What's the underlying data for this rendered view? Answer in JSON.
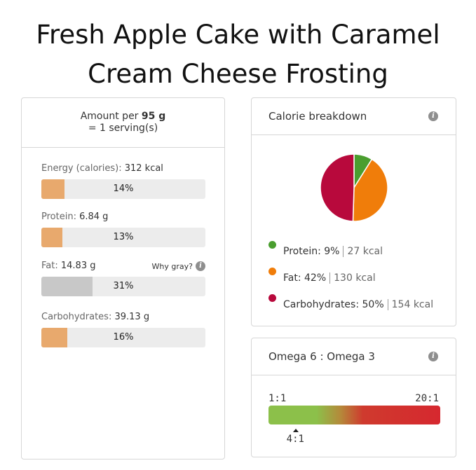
{
  "title_line1": "Fresh Apple Cake with Caramel",
  "title_line2": "Cream Cheese Frosting",
  "serving": {
    "amount_prefix": "Amount per ",
    "amount_value": "95 g",
    "servings": "= 1 serving(s)"
  },
  "nutrients": [
    {
      "label": "Energy (calories):",
      "value": "312 kcal",
      "percent": "14%",
      "fill": 0.14
    },
    {
      "label": "Protein:",
      "value": "6.84 g",
      "percent": "13%",
      "fill": 0.13
    },
    {
      "label": "Fat:",
      "value": "14.83 g",
      "percent": "31%",
      "fill": 0.31,
      "note": "Why gray?"
    },
    {
      "label": "Carbohydrates:",
      "value": "39.13 g",
      "percent": "16%",
      "fill": 0.16
    }
  ],
  "calorie_breakdown": {
    "title": "Calorie breakdown",
    "info_icon": "info-icon",
    "legend": [
      {
        "name": "Protein:",
        "pct": "9%",
        "kcal": "27 kcal",
        "color": "#4a9e2f"
      },
      {
        "name": "Fat:",
        "pct": "42%",
        "kcal": "130 kcal",
        "color": "#f07d0a"
      },
      {
        "name": "Carbohydrates:",
        "pct": "50%",
        "kcal": "154 kcal",
        "color": "#b8093c"
      }
    ]
  },
  "chart_data": {
    "type": "pie",
    "categories": [
      "Protein",
      "Fat",
      "Carbohydrates"
    ],
    "values": [
      9,
      42,
      50
    ],
    "colors": [
      "#4a9e2f",
      "#f07d0a",
      "#b8093c"
    ]
  },
  "omega": {
    "title": "Omega 6 : Omega 3",
    "info_icon": "info-icon",
    "min_label": "1:1",
    "max_label": "20:1",
    "marker_label": "4:1",
    "marker_value": 4,
    "scale_min": 1,
    "scale_max": 20
  }
}
